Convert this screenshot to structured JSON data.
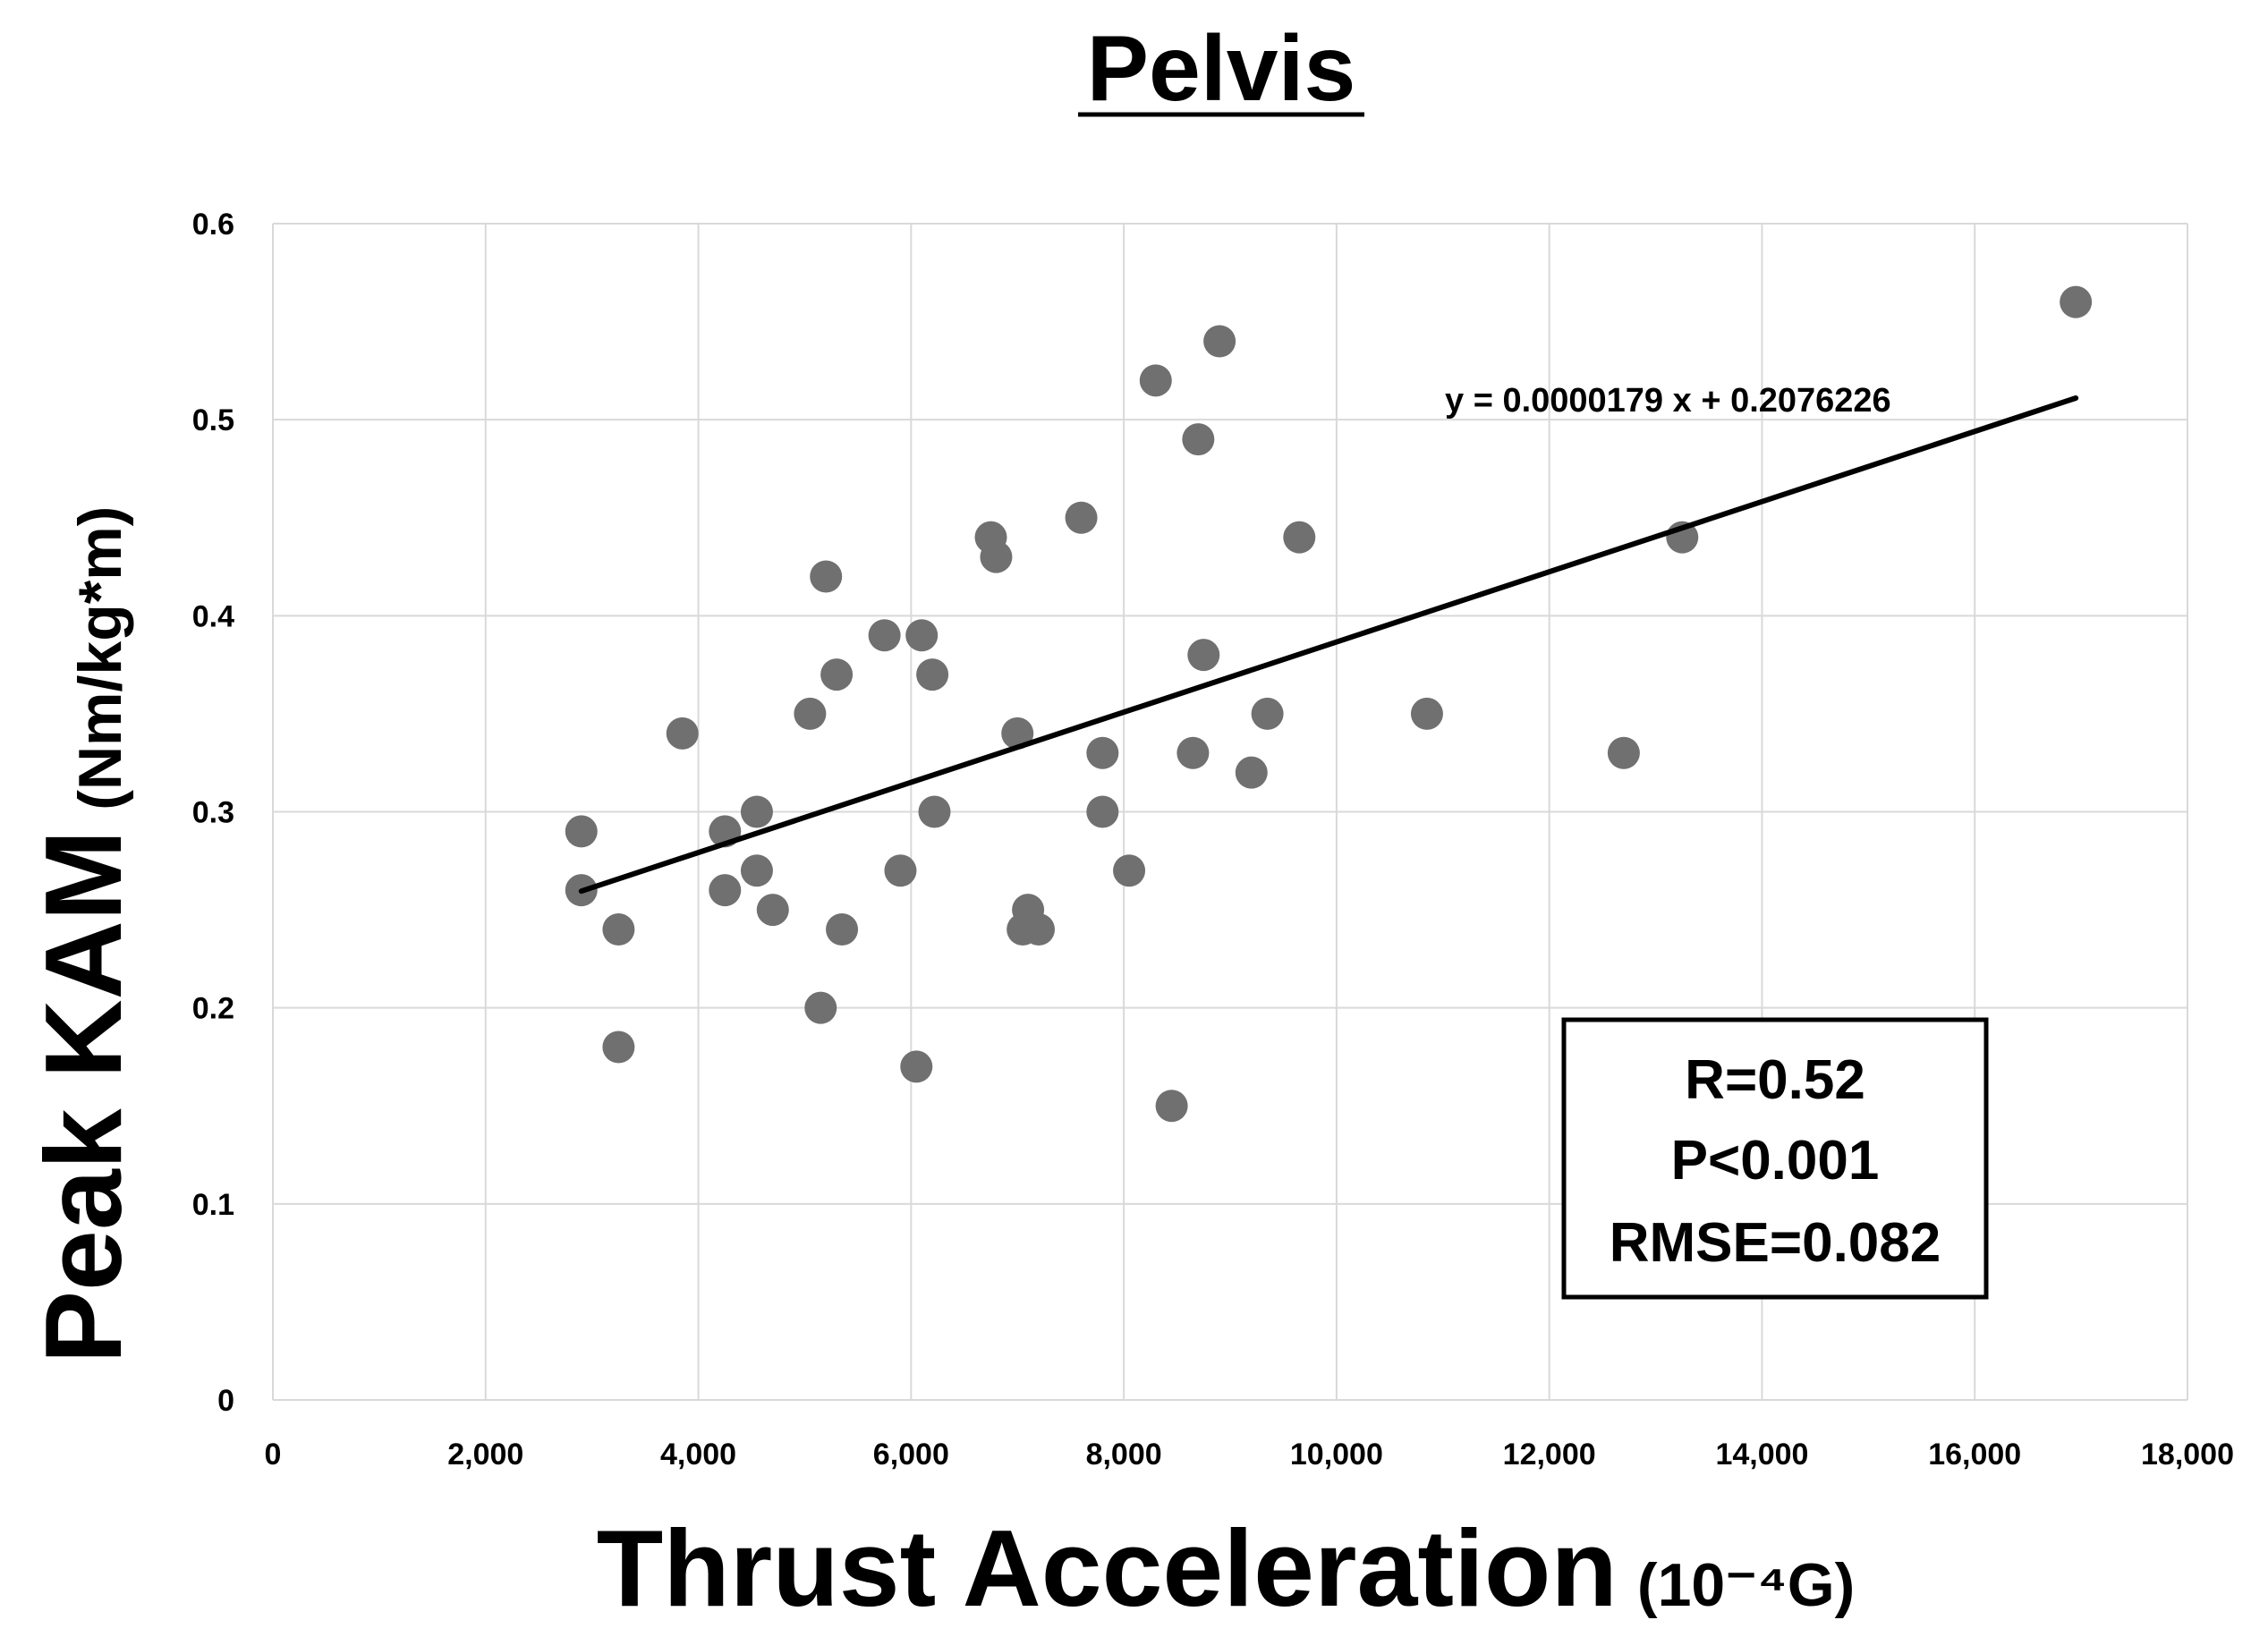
{
  "chart_data": {
    "type": "scatter",
    "title": "Pelvis",
    "xlabel": "Thrust Acceleration",
    "xlabel_unit": "(10⁻⁴G)",
    "ylabel": "Peak KAM",
    "ylabel_unit": "(Nm/kg*m)",
    "xlim": [
      0,
      18000
    ],
    "ylim": [
      0,
      0.6
    ],
    "grid": true,
    "x_ticks": [
      0,
      2000,
      4000,
      6000,
      8000,
      10000,
      12000,
      14000,
      16000,
      18000
    ],
    "x_tick_labels": [
      "0",
      "2,000",
      "4,000",
      "6,000",
      "8,000",
      "10,000",
      "12,000",
      "14,000",
      "16,000",
      "18,000"
    ],
    "y_ticks": [
      0,
      0.1,
      0.2,
      0.3,
      0.4,
      0.5,
      0.6
    ],
    "y_tick_labels": [
      "0",
      "0.1",
      "0.2",
      "0.3",
      "0.4",
      "0.5",
      "0.6"
    ],
    "series": [
      {
        "name": "Pelvis",
        "color": "#707070",
        "x": [
          2900,
          2900,
          3250,
          3250,
          3850,
          4250,
          4250,
          4550,
          4550,
          4700,
          5050,
          5150,
          5200,
          5300,
          5350,
          5750,
          5900,
          6050,
          6100,
          6200,
          6220,
          6750,
          6800,
          7000,
          7050,
          7100,
          7200,
          7600,
          7800,
          7800,
          8050,
          8300,
          8450,
          8650,
          8700,
          8750,
          8900,
          9200,
          9350,
          9650,
          10850,
          12700,
          13250,
          16950
        ],
        "y": [
          0.29,
          0.26,
          0.24,
          0.18,
          0.34,
          0.29,
          0.26,
          0.3,
          0.27,
          0.25,
          0.35,
          0.2,
          0.42,
          0.37,
          0.24,
          0.39,
          0.27,
          0.17,
          0.39,
          0.37,
          0.3,
          0.44,
          0.43,
          0.34,
          0.24,
          0.25,
          0.24,
          0.45,
          0.33,
          0.3,
          0.27,
          0.52,
          0.15,
          0.33,
          0.49,
          0.38,
          0.54,
          0.32,
          0.35,
          0.44,
          0.35,
          0.33,
          0.44,
          0.56
        ]
      }
    ],
    "trendline": {
      "equation": "y = 0.0000179 x + 0.2076226",
      "slope": 1.79e-05,
      "intercept": 0.2076226,
      "x_range": [
        2900,
        16950
      ]
    },
    "stats": {
      "r": "R=0.52",
      "p": "P<0.001",
      "rmse": "RMSE=0.082"
    }
  }
}
